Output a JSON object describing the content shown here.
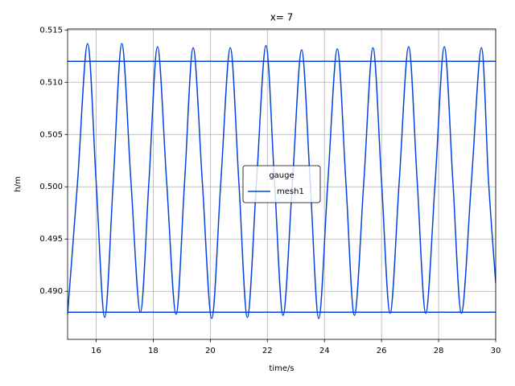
{
  "chart_data": {
    "type": "line",
    "title": "x= 7",
    "x_label": "time/s",
    "y_label": "h/m",
    "x": [
      15.0,
      15.35,
      15.7,
      16.0,
      16.3,
      16.6,
      16.9,
      17.22,
      17.55,
      17.85,
      18.15,
      18.47,
      18.8,
      19.1,
      19.4,
      19.72,
      20.05,
      20.37,
      20.7,
      21.0,
      21.3,
      21.62,
      21.95,
      22.25,
      22.55,
      22.88,
      23.2,
      23.5,
      23.8,
      24.12,
      24.45,
      24.75,
      25.05,
      25.38,
      25.7,
      26.0,
      26.3,
      26.62,
      26.95,
      27.25,
      27.55,
      27.88,
      28.2,
      28.5,
      28.8,
      29.15,
      29.5,
      29.75,
      30.0
    ],
    "series": [
      {
        "name": "mesh1",
        "color": "#0343df",
        "values": [
          0.4878,
          0.5005,
          0.5137,
          0.5005,
          0.4875,
          0.5005,
          0.5137,
          0.5005,
          0.488,
          0.5005,
          0.5134,
          0.5005,
          0.4878,
          0.5005,
          0.5133,
          0.5005,
          0.4874,
          0.5005,
          0.5133,
          0.5005,
          0.4875,
          0.5005,
          0.5135,
          0.5005,
          0.4877,
          0.5005,
          0.5131,
          0.5005,
          0.4874,
          0.5005,
          0.5132,
          0.5005,
          0.4877,
          0.5005,
          0.5133,
          0.5005,
          0.4879,
          0.5005,
          0.5134,
          0.5005,
          0.4879,
          0.5005,
          0.5134,
          0.5005,
          0.4879,
          0.5005,
          0.5133,
          0.5005,
          0.4908
        ]
      }
    ],
    "hlines": [
      0.512,
      0.488
    ],
    "hline_color": "#0343df",
    "xlim": [
      15,
      30
    ],
    "xticks": [
      16,
      18,
      20,
      22,
      24,
      26,
      28,
      30
    ],
    "ylim": [
      0.4854,
      0.5151
    ],
    "yticks": [
      {
        "value": 0.49,
        "label": "0.490"
      },
      0.495,
      {
        "value": 0.5,
        "label": "0.500"
      },
      0.505,
      {
        "value": 0.51,
        "label": "0.510"
      },
      0.515
    ],
    "grid": true,
    "legend_title": "gauge",
    "legend": "center"
  }
}
